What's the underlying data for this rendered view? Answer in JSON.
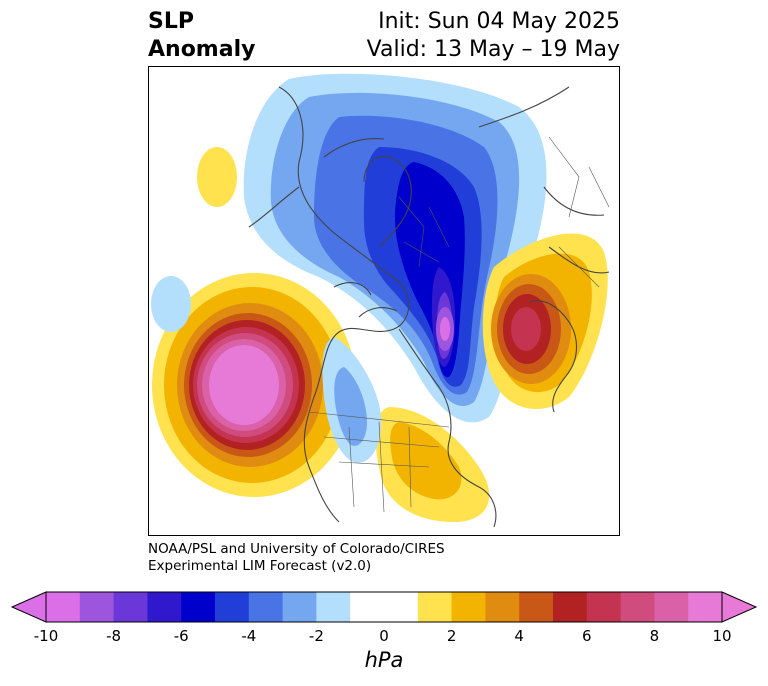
{
  "title": {
    "left_line1": "SLP",
    "left_line2": "Anomaly",
    "right_line1": "Init: Sun 04 May 2025",
    "right_line2": "Valid: 13 May – 19 May"
  },
  "credit": {
    "line1": "NOAA/PSL and University of Colorado/CIRES",
    "line2": "Experimental LIM Forecast (v2.0)"
  },
  "colorbar": {
    "unit": "hPa",
    "ticks": [
      "-10",
      "-8",
      "-6",
      "-4",
      "-2",
      "0",
      "2",
      "4",
      "6",
      "8",
      "10"
    ],
    "colors": [
      "#da6fe8",
      "#9e55dd",
      "#6b37d8",
      "#3019cc",
      "#0000cc",
      "#213fd8",
      "#4a73e6",
      "#74a7f0",
      "#b3defc",
      "#ffffff",
      "#ffffff",
      "#ffe24d",
      "#f2b400",
      "#e08c10",
      "#c95816",
      "#b22222",
      "#c43350",
      "#d04b7e",
      "#da60a8",
      "#e67ad6"
    ],
    "extend_low_color": "#da6fe8",
    "extend_high_color": "#e67ad6"
  },
  "map": {
    "projection": "north-polar-stereographic",
    "features": [
      {
        "name": "aleutian-high",
        "sign": "positive",
        "peak_hpa": 10
      },
      {
        "name": "eastern-north-america-high",
        "sign": "positive",
        "peak_hpa": 4
      },
      {
        "name": "scandinavian-high",
        "sign": "positive",
        "peak_hpa": 8
      },
      {
        "name": "arctic-greenland-low",
        "sign": "negative",
        "peak_hpa": -10
      },
      {
        "name": "central-north-america-low",
        "sign": "negative",
        "peak_hpa": -2
      }
    ]
  }
}
